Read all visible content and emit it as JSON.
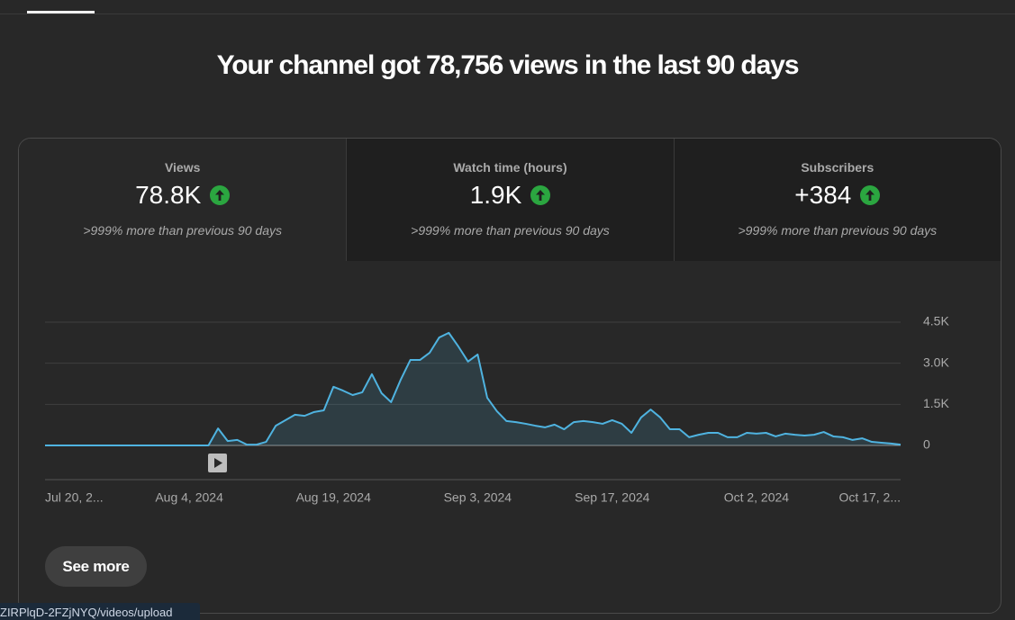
{
  "header": {
    "title": "Your channel got 78,756 views in the last 90 days"
  },
  "metrics": [
    {
      "label": "Views",
      "value": "78.8K",
      "comparison": ">999% more than previous 90 days"
    },
    {
      "label": "Watch time (hours)",
      "value": "1.9K",
      "comparison": ">999% more than previous 90 days"
    },
    {
      "label": "Subscribers",
      "value": "+384",
      "comparison": ">999% more than previous 90 days"
    }
  ],
  "chart_data": {
    "type": "area",
    "color": "#4fb3e0",
    "categories": [
      "Jul 20, 2...",
      null,
      null,
      null,
      null,
      null,
      null,
      null,
      null,
      null,
      null,
      null,
      null,
      null,
      null,
      "Aug 4, 2024",
      null,
      null,
      null,
      null,
      null,
      null,
      null,
      null,
      null,
      null,
      null,
      null,
      null,
      null,
      "Aug 19, 2024",
      null,
      null,
      null,
      null,
      null,
      null,
      null,
      null,
      null,
      null,
      null,
      null,
      null,
      null,
      "Sep 3, 2024",
      null,
      null,
      null,
      null,
      null,
      null,
      null,
      null,
      null,
      null,
      null,
      null,
      null,
      "Sep 17, 2024",
      null,
      null,
      null,
      null,
      null,
      null,
      null,
      null,
      null,
      null,
      null,
      null,
      null,
      null,
      "Oct 2, 2024",
      null,
      null,
      null,
      null,
      null,
      null,
      null,
      null,
      null,
      null,
      null,
      null,
      null,
      null,
      "Oct 17, 2..."
    ],
    "values": [
      0,
      0,
      0,
      0,
      0,
      0,
      0,
      0,
      0,
      0,
      0,
      0,
      0,
      0,
      0,
      0,
      0,
      0,
      620,
      160,
      200,
      30,
      30,
      130,
      720,
      920,
      1120,
      1080,
      1220,
      1280,
      2140,
      2000,
      1840,
      1940,
      2600,
      1910,
      1580,
      2400,
      3120,
      3120,
      3380,
      3940,
      4110,
      3610,
      3060,
      3320,
      1740,
      1250,
      890,
      850,
      790,
      720,
      660,
      760,
      590,
      850,
      890,
      850,
      790,
      920,
      790,
      460,
      1020,
      1310,
      1020,
      590,
      590,
      300,
      390,
      460,
      460,
      300,
      300,
      460,
      430,
      460,
      330,
      430,
      390,
      360,
      390,
      490,
      330,
      300,
      200,
      260,
      130,
      100,
      70,
      30
    ],
    "ylim": [
      0,
      4500
    ],
    "yticks": [
      {
        "value": 4500,
        "label": "4.5K"
      },
      {
        "value": 3000,
        "label": "3.0K"
      },
      {
        "value": 1500,
        "label": "1.5K"
      },
      0
    ],
    "grid": true
  },
  "button": "See more",
  "status_bar": "ZIRPlqD-2FZjNYQ/videos/upload"
}
